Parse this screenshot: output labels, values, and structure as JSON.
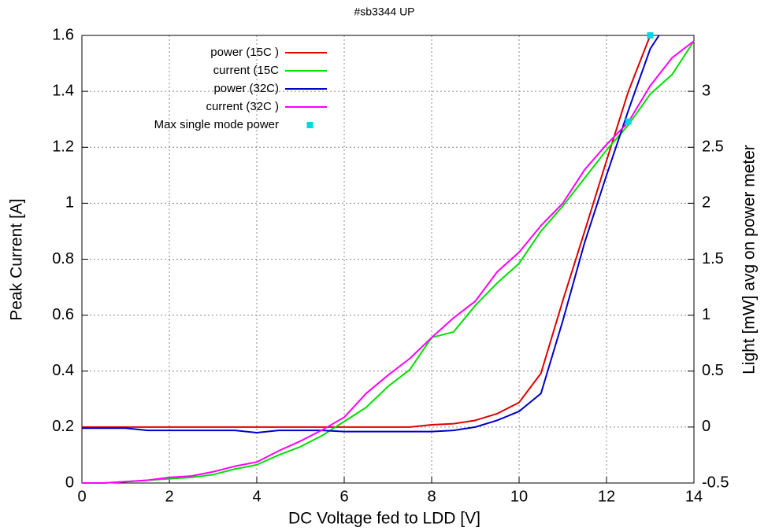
{
  "chart_data": {
    "type": "line",
    "title": "#sb3344 UP",
    "x_label": "DC Voltage fed to LDD [V]",
    "y_label": "Peak Current [A]",
    "y2_label": "Light [mW] avg on power meter",
    "xlim": [
      0,
      14
    ],
    "xticks": [
      0,
      2,
      4,
      6,
      8,
      10,
      12,
      14
    ],
    "ylim": [
      0,
      1.6
    ],
    "yticks": [
      0,
      0.2,
      0.4,
      0.6,
      0.8,
      1,
      1.2,
      1.4,
      1.6
    ],
    "y2lim": [
      -0.5,
      3.5
    ],
    "y2ticks": [
      -0.5,
      0,
      0.5,
      1,
      1.5,
      2,
      2.5,
      3
    ],
    "grid": true,
    "legend": "top-left",
    "series": [
      {
        "name": "power (15C )",
        "color": "#e00000",
        "axis": "y2",
        "x": [
          0,
          0.5,
          1,
          1.5,
          2,
          2.5,
          3,
          3.5,
          4,
          4.5,
          5,
          5.5,
          6,
          6.5,
          7,
          7.5,
          8,
          8.5,
          9,
          9.5,
          10,
          10.5,
          11,
          11.5,
          12,
          12.5,
          13
        ],
        "values": [
          0,
          0,
          0,
          0,
          0,
          0,
          0,
          0,
          0,
          0,
          0,
          0,
          0,
          0,
          0,
          0,
          0.02,
          0.03,
          0.06,
          0.12,
          0.22,
          0.48,
          1.13,
          1.75,
          2.38,
          3.0,
          3.5
        ]
      },
      {
        "name": "current (15C",
        "color": "#00e000",
        "x": [
          0,
          0.5,
          1,
          1.5,
          2,
          2.5,
          3,
          3.5,
          4,
          4.5,
          5,
          5.5,
          6,
          6.5,
          7,
          7.5,
          8,
          8.5,
          9,
          9.5,
          10,
          10.5,
          11,
          11.5,
          12,
          12.5,
          13,
          13.5,
          14
        ],
        "values": [
          0,
          0,
          0.005,
          0.01,
          0.015,
          0.02,
          0.03,
          0.05,
          0.065,
          0.1,
          0.13,
          0.17,
          0.22,
          0.27,
          0.345,
          0.405,
          0.52,
          0.54,
          0.635,
          0.715,
          0.785,
          0.9,
          0.99,
          1.09,
          1.19,
          1.28,
          1.39,
          1.46,
          1.58
        ]
      },
      {
        "name": "power (32C)",
        "color": "#0000c8",
        "axis": "y2",
        "x": [
          0,
          0.5,
          1,
          1.5,
          2,
          2.5,
          3,
          3.5,
          4,
          4.5,
          5,
          5.5,
          6,
          6.5,
          7,
          7.5,
          8,
          8.5,
          9,
          9.5,
          10,
          10.5,
          11,
          11.5,
          12,
          12.5,
          13,
          13.2
        ],
        "values": [
          -0.01,
          -0.01,
          -0.01,
          -0.03,
          -0.03,
          -0.03,
          -0.03,
          -0.03,
          -0.05,
          -0.03,
          -0.03,
          -0.03,
          -0.04,
          -0.04,
          -0.04,
          -0.04,
          -0.04,
          -0.03,
          0,
          0.06,
          0.14,
          0.3,
          0.95,
          1.65,
          2.25,
          2.83,
          3.38,
          3.5
        ]
      },
      {
        "name": "current (32C )",
        "color": "#ff00ff",
        "x": [
          0,
          0.5,
          1,
          1.5,
          2,
          2.5,
          3,
          3.5,
          4,
          4.5,
          5,
          5.5,
          6,
          6.5,
          7,
          7.5,
          8,
          8.5,
          9,
          9.5,
          10,
          10.5,
          11,
          11.5,
          12,
          12.5,
          13,
          13.5,
          14
        ],
        "values": [
          0,
          0,
          0.005,
          0.01,
          0.02,
          0.025,
          0.04,
          0.06,
          0.075,
          0.115,
          0.15,
          0.19,
          0.235,
          0.32,
          0.385,
          0.445,
          0.52,
          0.59,
          0.65,
          0.755,
          0.825,
          0.92,
          1.0,
          1.12,
          1.21,
          1.29,
          1.42,
          1.52,
          1.58
        ]
      },
      {
        "name": "Max single mode power",
        "color": "#00d8e0",
        "axis": "y2",
        "type": "scatter",
        "x": [
          12.5,
          13
        ],
        "values": [
          2.73,
          3.5
        ]
      }
    ]
  }
}
